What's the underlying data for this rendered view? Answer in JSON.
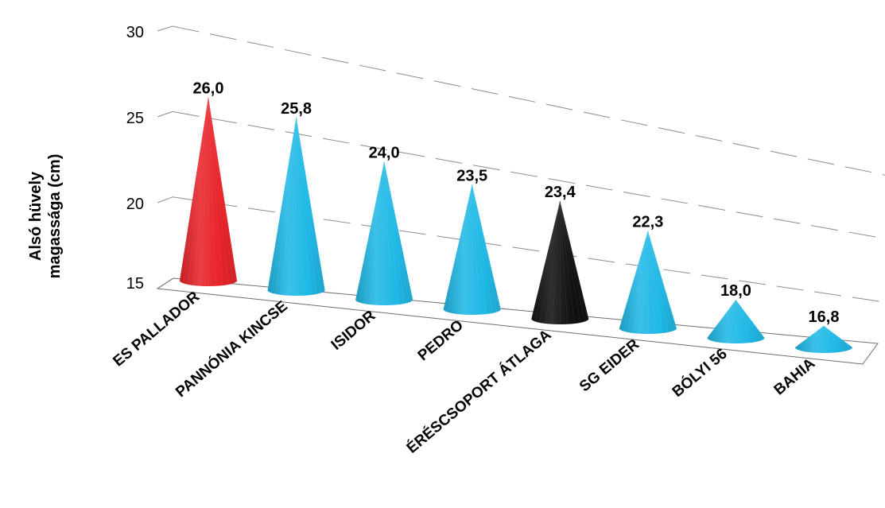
{
  "chart_data": {
    "type": "bar",
    "style": "3d-cone",
    "ylabel": "Alsó hüvely magassága (cm)",
    "ylabel_lines": [
      "Alsó hüvely",
      "magassága (cm)"
    ],
    "categories": [
      "ES PALLADOR",
      "PANNÓNIA KINCSE",
      "ISIDOR",
      "PEDRO",
      "ÉRÉSCSOPORT ÁTLAGA",
      "SG EIDER",
      "BÓLYI 56",
      "BAHIA"
    ],
    "values": [
      26.0,
      25.8,
      24.0,
      23.5,
      23.4,
      22.3,
      18.0,
      16.8
    ],
    "value_labels": [
      "26,0",
      "25,8",
      "24,0",
      "23,5",
      "23,4",
      "22,3",
      "18,0",
      "16,8"
    ],
    "colors": [
      "#e8232a",
      "#1fb8e6",
      "#1fb8e6",
      "#1fb8e6",
      "#111111",
      "#1fb8e6",
      "#1fb8e6",
      "#1fb8e6"
    ],
    "yticks": [
      15,
      20,
      25,
      30
    ],
    "ylim": [
      15,
      30
    ],
    "grid": true,
    "gridline_style": "dashed"
  }
}
